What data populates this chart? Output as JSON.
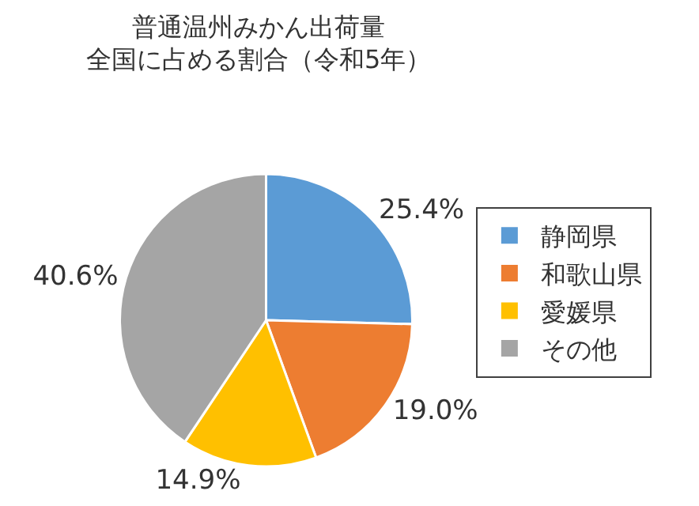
{
  "chart_data": {
    "type": "pie",
    "title": "普通温州みかん出荷量",
    "subtitle": "全国に占める割合（令和5年）",
    "categories": [
      "静岡県",
      "和歌山県",
      "愛媛県",
      "その他"
    ],
    "values": [
      25.4,
      19.0,
      14.9,
      40.6
    ],
    "value_labels": [
      "25.4%",
      "19.0%",
      "14.9%",
      "40.6%"
    ],
    "colors": [
      "#5b9bd5",
      "#ed7d31",
      "#ffc000",
      "#a5a5a5"
    ],
    "legend": "right"
  }
}
